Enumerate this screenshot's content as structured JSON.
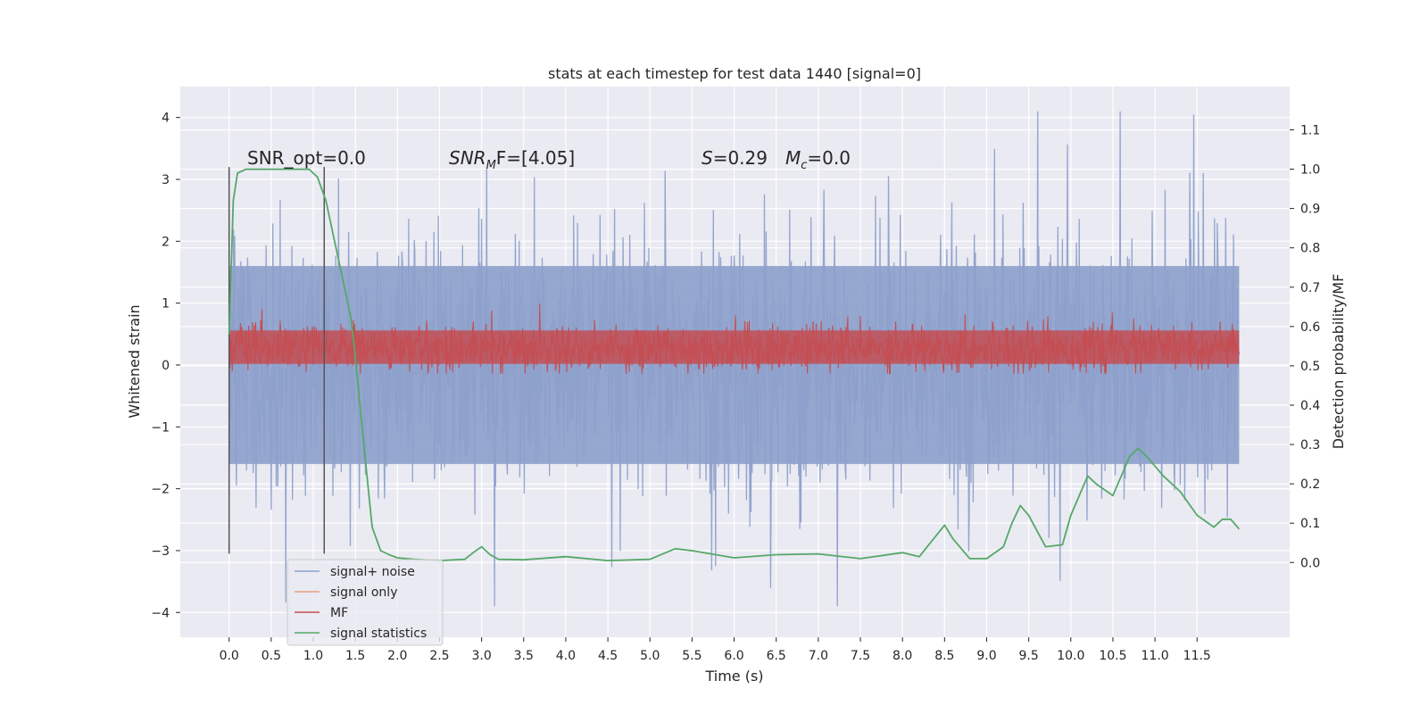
{
  "chart_data": {
    "type": "line",
    "title": "stats at each timestep for test data 1440 [signal=0]",
    "xlabel": "Time (s)",
    "ylabel_left": "Whitened strain",
    "ylabel_right": "Detection probability/MF",
    "xlim": [
      -0.58,
      12.6
    ],
    "ylim_left": [
      -4.4,
      4.5
    ],
    "ylim_right": [
      -0.19,
      1.21
    ],
    "x_ticks": [
      "0.0",
      "0.5",
      "1.0",
      "1.5",
      "2.0",
      "2.5",
      "3.0",
      "3.5",
      "4.0",
      "4.5",
      "5.0",
      "5.5",
      "6.0",
      "6.5",
      "7.0",
      "7.5",
      "8.0",
      "8.5",
      "9.0",
      "9.5",
      "10.0",
      "10.5",
      "11.0",
      "11.5"
    ],
    "y_left_ticks": [
      "4",
      "3",
      "2",
      "1",
      "0",
      "−1",
      "−2",
      "−3",
      "−4"
    ],
    "y_right_ticks": [
      "1.1",
      "1.0",
      "0.9",
      "0.8",
      "0.7",
      "0.6",
      "0.5",
      "0.4",
      "0.3",
      "0.2",
      "0.1",
      "0.0"
    ],
    "grid": true,
    "annotations": {
      "snr_opt": "SNR_opt=0.0",
      "snr_mf_italic": "SNR",
      "snr_mf_sub": "M",
      "snr_mf_rest": "F=[4.05]",
      "s_label": "S",
      "s_rest": "=0.29",
      "mc_label": "M",
      "mc_sub": "c",
      "mc_rest": "=0.0"
    },
    "window_markers_x": [
      0.0,
      1.13
    ],
    "window_markers_y_left": [
      -3.05,
      3.2
    ],
    "legend": {
      "position": "lower-left",
      "entries": [
        {
          "label": "signal+ noise",
          "color": "#8da0cb"
        },
        {
          "label": "signal only",
          "color": "#e8a07f"
        },
        {
          "label": "MF",
          "color": "#c44e52"
        },
        {
          "label": "signal statistics",
          "color": "#55a868"
        }
      ]
    },
    "series": [
      {
        "name": "signal+ noise",
        "axis": "left",
        "x_range": [
          0.0,
          12.0
        ],
        "typical_range": [
          -1.7,
          1.9
        ],
        "peak_max": 4.1,
        "peak_min": -3.9
      },
      {
        "name": "MF",
        "axis": "right",
        "x_range": [
          0.0,
          12.0
        ],
        "typical_range": [
          0.5,
          0.6
        ],
        "min": 0.48,
        "max": 0.66
      },
      {
        "name": "signal statistics",
        "axis": "right",
        "x": [
          0.0,
          0.05,
          0.1,
          0.2,
          0.3,
          0.5,
          0.8,
          0.95,
          1.05,
          1.15,
          1.25,
          1.35,
          1.45,
          1.5,
          1.6,
          1.7,
          1.8,
          1.9,
          2.0,
          2.2,
          2.5,
          2.8,
          2.9,
          3.0,
          3.1,
          3.2,
          3.5,
          4.0,
          4.5,
          5.0,
          5.3,
          5.5,
          6.0,
          6.5,
          7.0,
          7.5,
          8.0,
          8.2,
          8.5,
          8.6,
          8.8,
          9.0,
          9.2,
          9.3,
          9.4,
          9.5,
          9.7,
          9.9,
          10.0,
          10.2,
          10.3,
          10.5,
          10.7,
          10.8,
          10.9,
          11.1,
          11.3,
          11.5,
          11.7,
          11.8,
          11.9,
          12.0
        ],
        "y": [
          0.58,
          0.92,
          0.99,
          1.0,
          1.0,
          1.0,
          1.0,
          1.0,
          0.98,
          0.92,
          0.82,
          0.72,
          0.62,
          0.52,
          0.3,
          0.09,
          0.03,
          0.02,
          0.012,
          0.008,
          0.005,
          0.008,
          0.025,
          0.04,
          0.02,
          0.008,
          0.007,
          0.015,
          0.005,
          0.008,
          0.035,
          0.03,
          0.012,
          0.02,
          0.022,
          0.01,
          0.025,
          0.015,
          0.095,
          0.06,
          0.01,
          0.01,
          0.04,
          0.1,
          0.145,
          0.12,
          0.04,
          0.045,
          0.12,
          0.22,
          0.2,
          0.17,
          0.27,
          0.29,
          0.27,
          0.22,
          0.18,
          0.12,
          0.09,
          0.11,
          0.11,
          0.085
        ]
      }
    ]
  }
}
